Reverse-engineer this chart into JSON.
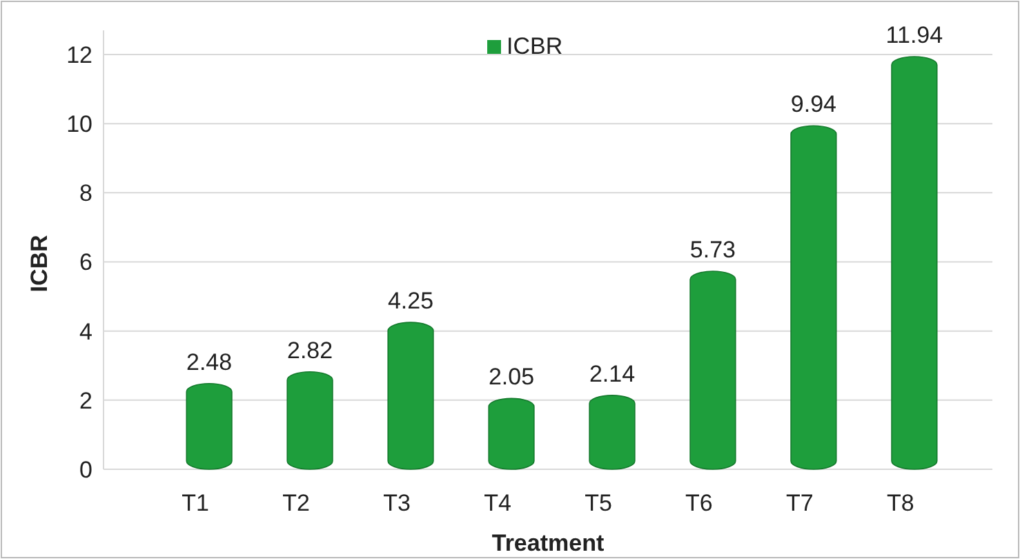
{
  "chart_data": {
    "type": "bar",
    "xlabel": "Treatment",
    "ylabel": "ICBR",
    "categories": [
      "T1",
      "T2",
      "T3",
      "T4",
      "T5",
      "T6",
      "T7",
      "T8"
    ],
    "series": [
      {
        "name": "ICBR",
        "color": "#1e9e3c",
        "values": [
          2.48,
          2.82,
          4.25,
          2.05,
          2.14,
          5.73,
          9.94,
          11.94
        ]
      }
    ],
    "ylim": [
      0,
      12.7
    ],
    "yticks": [
      0,
      2,
      4,
      6,
      8,
      10,
      12
    ],
    "grid": "y",
    "legend": "top",
    "data_labels": true
  }
}
